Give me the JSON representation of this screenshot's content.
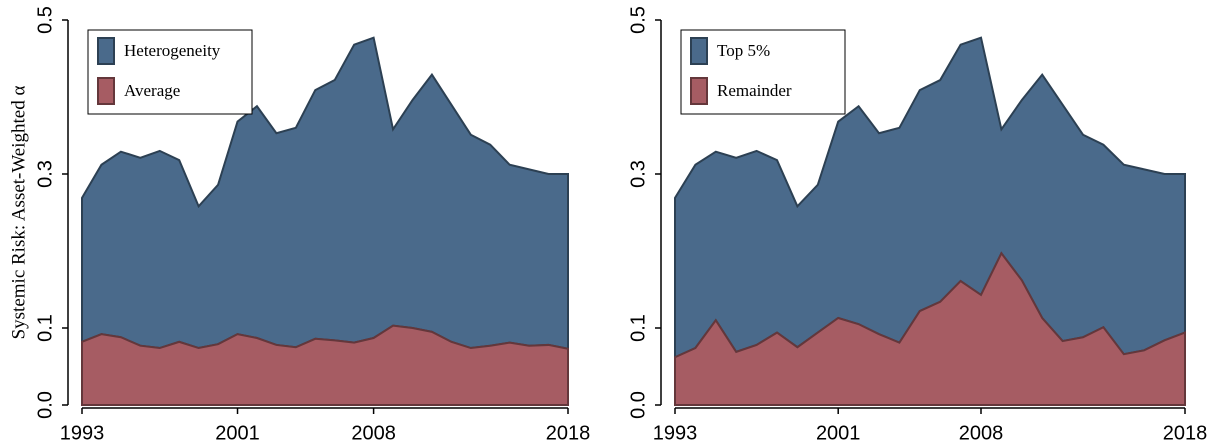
{
  "chart_data": [
    {
      "type": "stacked_area",
      "y_label": "Systemic Risk: Asset-Weighted α",
      "x": [
        1993,
        1994,
        1995,
        1996,
        1997,
        1998,
        1999,
        2000,
        2001,
        2002,
        2003,
        2004,
        2005,
        2006,
        2007,
        2008,
        2009,
        2010,
        2011,
        2012,
        2013,
        2014,
        2015,
        2016,
        2017,
        2018
      ],
      "series": [
        {
          "name": "Heterogeneity",
          "color": "#4a6a8b",
          "values": [
            0.187,
            0.22,
            0.241,
            0.244,
            0.256,
            0.236,
            0.184,
            0.207,
            0.276,
            0.301,
            0.275,
            0.285,
            0.323,
            0.338,
            0.387,
            0.39,
            0.255,
            0.296,
            0.334,
            0.308,
            0.277,
            0.261,
            0.231,
            0.229,
            0.222,
            0.227
          ]
        },
        {
          "name": "Average",
          "color": "#a65c63",
          "values": [
            0.082,
            0.092,
            0.088,
            0.077,
            0.074,
            0.082,
            0.074,
            0.079,
            0.092,
            0.087,
            0.078,
            0.075,
            0.086,
            0.084,
            0.081,
            0.087,
            0.103,
            0.1,
            0.095,
            0.082,
            0.074,
            0.077,
            0.081,
            0.077,
            0.078,
            0.073
          ]
        }
      ],
      "xlim": [
        1993,
        2018
      ],
      "xticks": [
        1993,
        2001,
        2008,
        2018
      ],
      "ylim": [
        0,
        0.5
      ],
      "yticks": [
        {
          "value": 0,
          "label": "0.0"
        },
        0.1,
        0.3,
        0.5
      ],
      "legend": "top-left"
    },
    {
      "type": "stacked_area",
      "x": [
        1993,
        1994,
        1995,
        1996,
        1997,
        1998,
        1999,
        2000,
        2001,
        2002,
        2003,
        2004,
        2005,
        2006,
        2007,
        2008,
        2009,
        2010,
        2011,
        2012,
        2013,
        2014,
        2015,
        2016,
        2017,
        2018
      ],
      "series": [
        {
          "name": "Top 5%",
          "color": "#4a6a8b",
          "values": [
            0.207,
            0.238,
            0.219,
            0.252,
            0.252,
            0.224,
            0.183,
            0.192,
            0.255,
            0.283,
            0.261,
            0.279,
            0.287,
            0.288,
            0.307,
            0.334,
            0.161,
            0.234,
            0.316,
            0.307,
            0.263,
            0.237,
            0.246,
            0.235,
            0.216,
            0.206
          ]
        },
        {
          "name": "Remainder",
          "color": "#a65c63",
          "values": [
            0.062,
            0.074,
            0.11,
            0.069,
            0.078,
            0.094,
            0.075,
            0.094,
            0.113,
            0.105,
            0.092,
            0.081,
            0.122,
            0.134,
            0.161,
            0.143,
            0.197,
            0.162,
            0.113,
            0.083,
            0.088,
            0.101,
            0.066,
            0.071,
            0.084,
            0.094
          ]
        }
      ],
      "xlim": [
        1993,
        2018
      ],
      "xticks": [
        1993,
        2001,
        2008,
        2018
      ],
      "ylim": [
        0,
        0.5
      ],
      "yticks": [
        {
          "value": 0,
          "label": "0.0"
        },
        0.1,
        0.3,
        0.5
      ],
      "legend": "top-left"
    }
  ]
}
